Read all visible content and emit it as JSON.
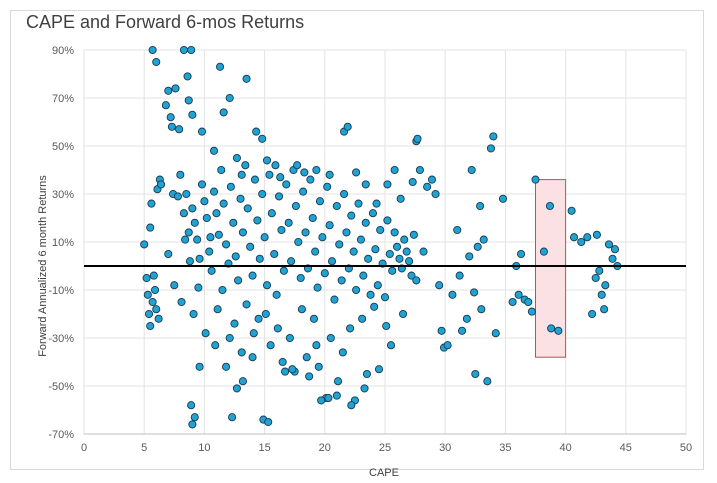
{
  "chart_data": {
    "type": "scatter",
    "title": "CAPE and Forward 6-mos Returns",
    "xlabel": "CAPE",
    "ylabel": "Forward Annualized 6 month Returns",
    "xlim": [
      0,
      50
    ],
    "ylim": [
      -70,
      90
    ],
    "x_ticks": [
      "0",
      "5",
      "10",
      "15",
      "20",
      "25",
      "30",
      "35",
      "40",
      "45",
      "50"
    ],
    "y_ticks": [
      "-70%",
      "-50%",
      "-30%",
      "-10%",
      "10%",
      "30%",
      "50%",
      "70%",
      "90%"
    ],
    "grid": true,
    "legend": "none",
    "marker_color": "#1fa2d4",
    "marker_edge": "#1a3b4e",
    "zero_line_color": "#000000",
    "highlight": {
      "x_range": [
        37.5,
        40
      ],
      "y_range": [
        -38,
        36
      ],
      "fill": "#fbe0e4",
      "stroke": "#c0504d"
    },
    "series": [
      {
        "points": [
          [
            5.0,
            9
          ],
          [
            5.2,
            -5
          ],
          [
            5.3,
            -12
          ],
          [
            5.4,
            -20
          ],
          [
            5.5,
            -25
          ],
          [
            5.5,
            16
          ],
          [
            5.6,
            26
          ],
          [
            5.7,
            -15
          ],
          [
            5.8,
            -4
          ],
          [
            5.9,
            -10
          ],
          [
            6.0,
            -18
          ],
          [
            6.1,
            32
          ],
          [
            6.2,
            -22
          ],
          [
            6.3,
            36
          ],
          [
            6.4,
            34
          ],
          [
            5.7,
            90
          ],
          [
            6.0,
            85
          ],
          [
            6.8,
            67
          ],
          [
            7.0,
            73
          ],
          [
            7.2,
            62
          ],
          [
            7.3,
            58
          ],
          [
            7.6,
            74
          ],
          [
            7.9,
            57
          ],
          [
            8.3,
            90
          ],
          [
            8.6,
            79
          ],
          [
            8.7,
            69
          ],
          [
            8.9,
            90
          ],
          [
            9.0,
            63
          ],
          [
            11.3,
            83
          ],
          [
            13.5,
            78
          ],
          [
            9.8,
            56
          ],
          [
            7.4,
            30
          ],
          [
            7.8,
            29
          ],
          [
            8.0,
            38
          ],
          [
            8.3,
            22
          ],
          [
            8.5,
            30
          ],
          [
            8.7,
            14
          ],
          [
            8.8,
            2
          ],
          [
            9.0,
            24
          ],
          [
            9.2,
            18
          ],
          [
            9.4,
            11
          ],
          [
            9.6,
            3
          ],
          [
            9.8,
            34
          ],
          [
            10.0,
            27
          ],
          [
            10.2,
            20
          ],
          [
            10.4,
            6
          ],
          [
            10.6,
            -2
          ],
          [
            10.8,
            31
          ],
          [
            11.0,
            22
          ],
          [
            11.2,
            13
          ],
          [
            11.4,
            40
          ],
          [
            11.6,
            26
          ],
          [
            11.8,
            9
          ],
          [
            12.0,
            1
          ],
          [
            12.2,
            33
          ],
          [
            12.4,
            18
          ],
          [
            12.6,
            4
          ],
          [
            12.8,
            -6
          ],
          [
            13.0,
            28
          ],
          [
            13.2,
            14
          ],
          [
            13.4,
            42
          ],
          [
            13.6,
            24
          ],
          [
            13.8,
            8
          ],
          [
            14.0,
            -4
          ],
          [
            14.2,
            36
          ],
          [
            14.4,
            19
          ],
          [
            14.6,
            3
          ],
          [
            14.8,
            30
          ],
          [
            15.0,
            12
          ],
          [
            15.2,
            -8
          ],
          [
            15.4,
            38
          ],
          [
            15.6,
            22
          ],
          [
            15.8,
            5
          ],
          [
            16.0,
            -12
          ],
          [
            16.2,
            29
          ],
          [
            16.4,
            15
          ],
          [
            16.6,
            -2
          ],
          [
            16.8,
            34
          ],
          [
            17.0,
            18
          ],
          [
            17.2,
            2
          ],
          [
            17.4,
            40
          ],
          [
            17.6,
            25
          ],
          [
            17.8,
            10
          ],
          [
            18.0,
            -5
          ],
          [
            18.2,
            31
          ],
          [
            18.4,
            14
          ],
          [
            18.6,
            -1
          ],
          [
            18.8,
            36
          ],
          [
            19.0,
            20
          ],
          [
            19.2,
            6
          ],
          [
            19.4,
            -9
          ],
          [
            19.6,
            27
          ],
          [
            19.8,
            12
          ],
          [
            20.0,
            -3
          ],
          [
            20.2,
            33
          ],
          [
            20.4,
            17
          ],
          [
            20.6,
            2
          ],
          [
            20.8,
            -14
          ],
          [
            21.0,
            25
          ],
          [
            21.2,
            9
          ],
          [
            21.4,
            -6
          ],
          [
            21.6,
            30
          ],
          [
            21.8,
            14
          ],
          [
            22.0,
            -1
          ],
          [
            22.2,
            21
          ],
          [
            22.4,
            6
          ],
          [
            22.6,
            -10
          ],
          [
            22.8,
            26
          ],
          [
            23.0,
            11
          ],
          [
            23.2,
            -4
          ],
          [
            23.4,
            18
          ],
          [
            23.6,
            3
          ],
          [
            23.8,
            -12
          ],
          [
            24.0,
            22
          ],
          [
            24.2,
            7
          ],
          [
            24.4,
            -8
          ],
          [
            24.6,
            15
          ],
          [
            24.8,
            1
          ],
          [
            25.0,
            -13
          ],
          [
            25.2,
            19
          ],
          [
            25.4,
            5
          ],
          [
            25.6,
            -2
          ],
          [
            25.8,
            14
          ],
          [
            26.0,
            8
          ],
          [
            26.2,
            3
          ],
          [
            26.4,
            -1
          ],
          [
            26.6,
            11
          ],
          [
            26.8,
            6
          ],
          [
            27.0,
            2
          ],
          [
            27.2,
            -4
          ],
          [
            27.4,
            13
          ],
          [
            27.6,
            -6
          ],
          [
            7.0,
            5
          ],
          [
            7.5,
            -8
          ],
          [
            8.1,
            -15
          ],
          [
            8.4,
            11
          ],
          [
            9.1,
            -20
          ],
          [
            9.5,
            -9
          ],
          [
            10.1,
            -28
          ],
          [
            10.5,
            12
          ],
          [
            11.1,
            -18
          ],
          [
            11.5,
            -10
          ],
          [
            12.1,
            -30
          ],
          [
            12.5,
            -24
          ],
          [
            13.1,
            -36
          ],
          [
            13.5,
            -16
          ],
          [
            14.1,
            -28
          ],
          [
            14.5,
            -22
          ],
          [
            15.1,
            -20
          ],
          [
            15.5,
            -33
          ],
          [
            16.1,
            -26
          ],
          [
            16.5,
            -40
          ],
          [
            17.1,
            -30
          ],
          [
            17.5,
            -44
          ],
          [
            18.1,
            -18
          ],
          [
            18.5,
            -38
          ],
          [
            19.1,
            -22
          ],
          [
            19.5,
            -42
          ],
          [
            20.1,
            -55
          ],
          [
            20.5,
            -30
          ],
          [
            21.1,
            -48
          ],
          [
            21.5,
            -36
          ],
          [
            22.1,
            -26
          ],
          [
            22.5,
            -56
          ],
          [
            23.1,
            -22
          ],
          [
            23.5,
            -45
          ],
          [
            24.1,
            -17
          ],
          [
            24.5,
            -43
          ],
          [
            25.1,
            -25
          ],
          [
            25.5,
            -33
          ],
          [
            26.5,
            -20
          ],
          [
            8.9,
            -58
          ],
          [
            9.0,
            -66
          ],
          [
            9.2,
            -63
          ],
          [
            12.3,
            -63
          ],
          [
            14.9,
            -64
          ],
          [
            15.3,
            -65
          ],
          [
            19.7,
            -56
          ],
          [
            20.3,
            -55
          ],
          [
            21.0,
            -54
          ],
          [
            22.2,
            -58
          ],
          [
            23.3,
            -51
          ],
          [
            9.6,
            -42
          ],
          [
            10.9,
            -33
          ],
          [
            11.8,
            -42
          ],
          [
            12.7,
            -51
          ],
          [
            13.2,
            -48
          ],
          [
            14.0,
            -38
          ],
          [
            16.7,
            -44
          ],
          [
            17.3,
            -43
          ],
          [
            18.7,
            -46
          ],
          [
            19.3,
            -33
          ],
          [
            10.8,
            48
          ],
          [
            11.6,
            64
          ],
          [
            12.1,
            70
          ],
          [
            12.7,
            45
          ],
          [
            13.1,
            38
          ],
          [
            14.3,
            56
          ],
          [
            14.8,
            53
          ],
          [
            15.2,
            44
          ],
          [
            15.9,
            42
          ],
          [
            16.3,
            37
          ],
          [
            17.7,
            42
          ],
          [
            18.3,
            39
          ],
          [
            19.3,
            40
          ],
          [
            20.4,
            38
          ],
          [
            21.6,
            56
          ],
          [
            21.9,
            58
          ],
          [
            22.6,
            39
          ],
          [
            23.4,
            34
          ],
          [
            24.3,
            26
          ],
          [
            25.2,
            34
          ],
          [
            25.8,
            40
          ],
          [
            26.3,
            28
          ],
          [
            27.3,
            35
          ],
          [
            27.6,
            52
          ],
          [
            27.7,
            53
          ],
          [
            27.9,
            40
          ],
          [
            28.2,
            6
          ],
          [
            28.5,
            33
          ],
          [
            28.9,
            36
          ],
          [
            29.2,
            30
          ],
          [
            29.5,
            -8
          ],
          [
            29.7,
            -27
          ],
          [
            29.9,
            -34
          ],
          [
            30.2,
            -33
          ],
          [
            30.6,
            -12
          ],
          [
            31.0,
            15
          ],
          [
            31.2,
            -4
          ],
          [
            31.4,
            -27
          ],
          [
            31.8,
            -22
          ],
          [
            32.0,
            4
          ],
          [
            32.2,
            40
          ],
          [
            32.4,
            -11
          ],
          [
            32.5,
            -45
          ],
          [
            32.7,
            8
          ],
          [
            32.9,
            25
          ],
          [
            33.0,
            -18
          ],
          [
            33.2,
            11
          ],
          [
            33.5,
            -48
          ],
          [
            33.8,
            49
          ],
          [
            34.0,
            54
          ],
          [
            34.2,
            -28
          ],
          [
            34.8,
            28
          ],
          [
            35.6,
            -15
          ],
          [
            35.9,
            0
          ],
          [
            36.1,
            -12
          ],
          [
            36.3,
            5
          ],
          [
            36.6,
            -14
          ],
          [
            36.9,
            -15
          ],
          [
            37.2,
            -19
          ],
          [
            37.5,
            36
          ],
          [
            38.2,
            6
          ],
          [
            38.7,
            25
          ],
          [
            38.8,
            -26
          ],
          [
            39.4,
            -27
          ],
          [
            40.5,
            23
          ],
          [
            40.7,
            12
          ],
          [
            41.3,
            10
          ],
          [
            41.8,
            12
          ],
          [
            42.2,
            -20
          ],
          [
            42.6,
            13
          ],
          [
            42.8,
            -2
          ],
          [
            43.0,
            -12
          ],
          [
            43.2,
            -18
          ],
          [
            43.3,
            -8
          ],
          [
            43.6,
            9
          ],
          [
            43.9,
            3
          ],
          [
            44.1,
            7
          ],
          [
            44.3,
            0
          ],
          [
            42.5,
            -5
          ]
        ]
      }
    ]
  }
}
